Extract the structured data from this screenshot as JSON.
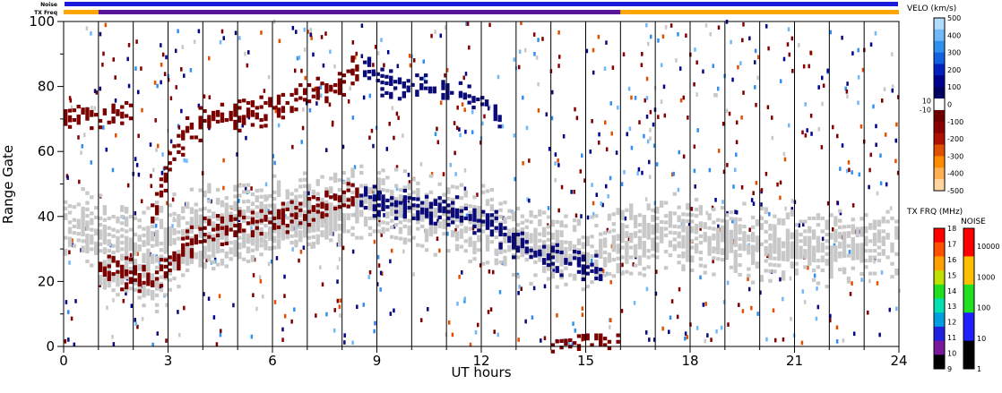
{
  "chart_data": {
    "type": "scatter",
    "xlabel": "UT hours",
    "ylabel": "Range Gate",
    "xlim": [
      0,
      24
    ],
    "ylim": [
      0,
      100
    ],
    "x_ticks": [
      "0",
      "3",
      "6",
      "9",
      "12",
      "15",
      "18",
      "21",
      "24"
    ],
    "y_ticks": [
      "0",
      "20",
      "40",
      "60",
      "80",
      "100"
    ],
    "status_bars": {
      "noise_label": "Noise",
      "txfreq_label": "TX Freq",
      "noise_color": "#1a1adc",
      "txfreq_segments": [
        {
          "x0": 0,
          "x1": 1,
          "color": "#ffa500"
        },
        {
          "x0": 1,
          "x1": 16,
          "color": "#5a169a"
        },
        {
          "x0": 16,
          "x1": 24,
          "color": "#ffa500"
        }
      ]
    },
    "scan_boundaries_ut": [
      1,
      2,
      3,
      4,
      5,
      6,
      7,
      8,
      9,
      10,
      11,
      12,
      13,
      14,
      15,
      16,
      17,
      18,
      19,
      20,
      21,
      22,
      23
    ],
    "features": [
      {
        "kind": "ground_scatter",
        "color": "#c8c8c8",
        "points": [
          [
            0,
            38
          ],
          [
            1,
            36
          ],
          [
            2,
            32
          ],
          [
            3,
            35
          ],
          [
            4,
            38
          ],
          [
            5,
            40
          ],
          [
            6,
            41
          ],
          [
            7,
            42
          ],
          [
            8,
            44
          ],
          [
            9,
            44
          ],
          [
            10,
            42
          ],
          [
            11,
            40
          ],
          [
            12,
            38
          ],
          [
            13,
            33
          ],
          [
            14,
            30
          ],
          [
            15,
            29
          ],
          [
            16,
            32
          ],
          [
            17,
            36
          ],
          [
            18,
            35
          ],
          [
            19,
            33
          ],
          [
            20,
            32
          ],
          [
            21,
            31
          ],
          [
            22,
            31
          ],
          [
            23,
            32
          ],
          [
            24,
            32
          ]
        ],
        "width_gates": 12
      },
      {
        "kind": "ground_scatter",
        "color": "#c8c8c8",
        "points": [
          [
            1,
            22
          ],
          [
            2,
            19
          ],
          [
            2.6,
            17
          ],
          [
            3,
            22
          ],
          [
            3.5,
            28
          ],
          [
            4,
            30
          ],
          [
            5,
            32
          ],
          [
            6,
            35
          ],
          [
            7,
            38
          ],
          [
            8,
            40
          ]
        ],
        "width_gates": 6
      },
      {
        "kind": "velocity_band",
        "color": "#7a0000",
        "points": [
          [
            1,
            25
          ],
          [
            2,
            22
          ],
          [
            2.6,
            20
          ],
          [
            3,
            26
          ],
          [
            3.6,
            32
          ],
          [
            4,
            36
          ],
          [
            5,
            38
          ],
          [
            6,
            40
          ],
          [
            7,
            42
          ],
          [
            8,
            46
          ],
          [
            8.4,
            48
          ]
        ],
        "width_gates": 5
      },
      {
        "kind": "velocity_band",
        "color": "#7a0000",
        "points": [
          [
            2.5,
            40
          ],
          [
            3,
            58
          ],
          [
            3.4,
            65
          ],
          [
            4,
            70
          ],
          [
            5,
            72
          ],
          [
            6,
            74
          ],
          [
            7,
            78
          ],
          [
            8,
            82
          ],
          [
            8.5,
            87
          ]
        ],
        "width_gates": 5
      },
      {
        "kind": "velocity_band",
        "color": "#7a0000",
        "points": [
          [
            0,
            70
          ],
          [
            1,
            71
          ],
          [
            2,
            73
          ]
        ],
        "width_gates": 4
      },
      {
        "kind": "velocity_band",
        "color": "#0a0a78",
        "points": [
          [
            8.6,
            88
          ],
          [
            9,
            82
          ],
          [
            10,
            80
          ],
          [
            11,
            80
          ],
          [
            12,
            76
          ],
          [
            12.6,
            70
          ]
        ],
        "width_gates": 4
      },
      {
        "kind": "velocity_band",
        "color": "#0a0a78",
        "points": [
          [
            8.5,
            48
          ],
          [
            9,
            45
          ],
          [
            10,
            43
          ],
          [
            11,
            42
          ],
          [
            12,
            40
          ],
          [
            13,
            32
          ],
          [
            14,
            27
          ],
          [
            15,
            25
          ],
          [
            15.5,
            24
          ]
        ],
        "width_gates": 5
      },
      {
        "kind": "velocity_band",
        "color": "#7a0000",
        "points": [
          [
            14,
            1
          ],
          [
            15,
            2
          ],
          [
            16,
            2
          ]
        ],
        "width_gates": 3
      }
    ],
    "velocity_colorbar": {
      "title": "VELO (km/s)",
      "labels": [
        "500",
        "400",
        "300",
        "200",
        "100",
        "10",
        "0",
        "-10",
        "-100",
        "-200",
        "-300",
        "-400",
        "-500"
      ],
      "colors": [
        "#ffd6a0",
        "#ffb050",
        "#ff8c00",
        "#e05000",
        "#b01000",
        "#8a0000",
        "#700000",
        "#ffffff",
        "#000060",
        "#000090",
        "#0020c0",
        "#1060e0",
        "#3090f0",
        "#70b8f8",
        "#b0dcff"
      ]
    },
    "txfreq_colorbar": {
      "title": "TX FRQ (MHz)",
      "labels": [
        "18",
        "17",
        "16",
        "15",
        "14",
        "13",
        "12",
        "11",
        "10",
        "9"
      ],
      "colors": [
        "#000000",
        "#7a1a9a",
        "#2020e0",
        "#00a0e0",
        "#00e0b0",
        "#20e020",
        "#c0e000",
        "#ffa000",
        "#ff5000",
        "#ff0000"
      ]
    },
    "noise_colorbar": {
      "title": "NOISE",
      "labels": [
        "10000",
        "1000",
        "100",
        "10",
        "1"
      ],
      "colors": [
        "#000000",
        "#2020ff",
        "#20e020",
        "#ffc000",
        "#ff0000"
      ]
    }
  }
}
